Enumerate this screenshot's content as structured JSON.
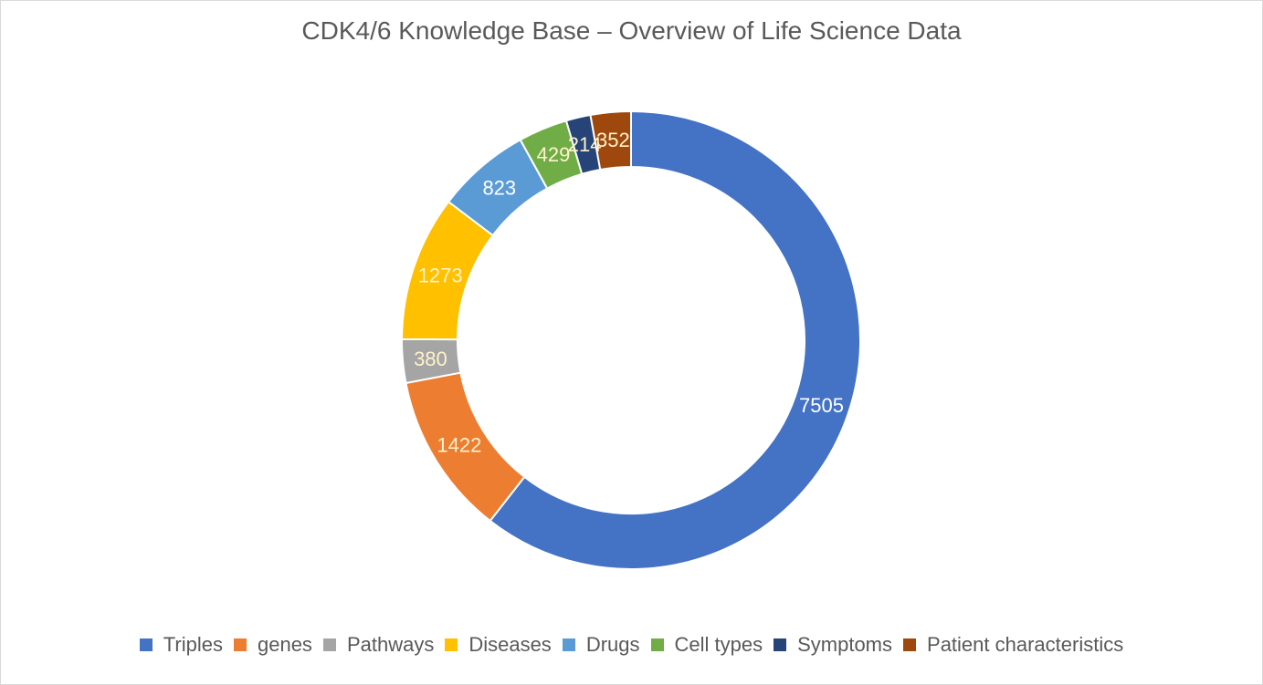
{
  "chart_data": {
    "type": "pie",
    "variant": "doughnut",
    "title": "CDK4/6 Knowledge Base – Overview of Life Science Data",
    "categories": [
      "Triples",
      "genes",
      "Pathways",
      "Diseases",
      "Drugs",
      "Cell types",
      "Symptoms",
      "Patient characteristics"
    ],
    "values": [
      7505,
      1422,
      380,
      1273,
      823,
      429,
      214,
      352
    ],
    "data_labels": [
      "7505",
      "1422",
      "380",
      "1273",
      "823",
      "429",
      "214",
      "352"
    ],
    "colors": [
      "#4472C4",
      "#ED7D31",
      "#A5A5A5",
      "#FFC000",
      "#5B9BD5",
      "#70AD47",
      "#264478",
      "#9E480E"
    ],
    "label_colors": [
      "#FFFFFF",
      "#FFF2CC",
      "#FFF2CC",
      "#FFF2CC",
      "#FFFFFF",
      "#FFF2CC",
      "#FFF2CC",
      "#FFF2CC"
    ],
    "legend_position": "bottom",
    "start_angle": "top, clockwise"
  }
}
